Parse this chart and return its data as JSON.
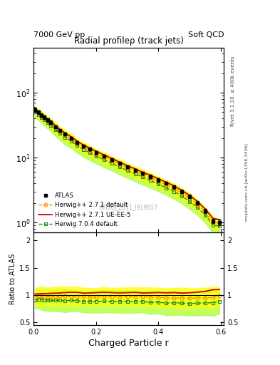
{
  "title_left": "7000 GeV pp",
  "title_right": "Soft QCD",
  "plot_title": "Radial profileρ (track jets)",
  "ylabel_ratio": "Ratio to ATLAS",
  "xlabel": "Charged Particle r",
  "right_label_top": "Rivet 3.1.10, ≥ 400k events",
  "right_label_bot": "mcplots.cern.ch [arXiv:1306.3436]",
  "watermark": "ATLAS_2011_I919017",
  "xlim": [
    0.0,
    0.61
  ],
  "ylim_main": [
    0.7,
    500
  ],
  "ylim_ratio": [
    0.45,
    2.15
  ],
  "r_values": [
    0.005,
    0.015,
    0.025,
    0.035,
    0.045,
    0.055,
    0.07,
    0.085,
    0.1,
    0.12,
    0.14,
    0.16,
    0.18,
    0.2,
    0.225,
    0.25,
    0.275,
    0.3,
    0.325,
    0.35,
    0.375,
    0.4,
    0.425,
    0.45,
    0.475,
    0.5,
    0.525,
    0.55,
    0.575,
    0.595
  ],
  "atlas_y": [
    55,
    50,
    45,
    42,
    38,
    35,
    30,
    26,
    23,
    20,
    17,
    15,
    13.5,
    12,
    10.5,
    9.3,
    8.2,
    7.2,
    6.4,
    5.7,
    5.1,
    4.5,
    4.0,
    3.5,
    3.0,
    2.5,
    2.0,
    1.5,
    1.05,
    1.0
  ],
  "atlas_yerr": [
    4,
    3.5,
    3,
    2.5,
    2.2,
    2.0,
    1.5,
    1.3,
    1.2,
    1.0,
    0.9,
    0.8,
    0.7,
    0.6,
    0.55,
    0.5,
    0.45,
    0.4,
    0.35,
    0.3,
    0.28,
    0.25,
    0.22,
    0.2,
    0.18,
    0.15,
    0.13,
    0.1,
    0.08,
    0.09
  ],
  "hw271d_y": [
    53,
    49,
    44,
    41,
    37,
    34,
    29,
    25.5,
    22.5,
    19.5,
    16.5,
    14.5,
    13,
    11.5,
    10.2,
    9.0,
    7.9,
    7.0,
    6.2,
    5.5,
    4.9,
    4.3,
    3.8,
    3.3,
    2.85,
    2.35,
    1.9,
    1.42,
    1.0,
    0.98
  ],
  "hw271ue_y": [
    56,
    51,
    46,
    43,
    39,
    36,
    31,
    27,
    24,
    21,
    17.8,
    15.5,
    14,
    12.5,
    11.0,
    9.7,
    8.5,
    7.5,
    6.7,
    5.9,
    5.3,
    4.7,
    4.15,
    3.65,
    3.1,
    2.6,
    2.1,
    1.6,
    1.15,
    1.1
  ],
  "hw704d_y": [
    50,
    46,
    41,
    38,
    34.5,
    31.5,
    27,
    23.5,
    20.5,
    18,
    15.2,
    13.2,
    11.8,
    10.5,
    9.3,
    8.2,
    7.2,
    6.3,
    5.6,
    5.0,
    4.4,
    3.9,
    3.4,
    3.0,
    2.55,
    2.1,
    1.7,
    1.28,
    0.9,
    0.88
  ],
  "hw704d_band_hi": [
    60,
    55,
    50,
    46,
    42,
    38,
    33,
    29,
    25.5,
    22,
    18.5,
    16.2,
    14.5,
    13,
    11.5,
    10.1,
    8.9,
    7.8,
    6.9,
    6.1,
    5.5,
    4.85,
    4.3,
    3.8,
    3.2,
    2.65,
    2.15,
    1.62,
    1.15,
    1.1
  ],
  "hw704d_band_lo": [
    42,
    38,
    34,
    31,
    28,
    25.5,
    21.5,
    18.5,
    16,
    14,
    11.8,
    10.2,
    9.1,
    8.1,
    7.1,
    6.3,
    5.5,
    4.85,
    4.3,
    3.8,
    3.4,
    3.0,
    2.65,
    2.3,
    1.95,
    1.6,
    1.3,
    0.98,
    0.69,
    0.68
  ],
  "hw271d_band_hi": [
    62,
    57,
    52,
    48,
    43,
    40,
    34.5,
    30,
    26.5,
    23,
    19.5,
    17,
    15.2,
    13.5,
    12,
    10.5,
    9.3,
    8.2,
    7.3,
    6.5,
    5.8,
    5.1,
    4.5,
    3.95,
    3.4,
    2.8,
    2.25,
    1.7,
    1.2,
    1.15
  ],
  "hw271d_band_lo": [
    44,
    41,
    37,
    34,
    31,
    28.5,
    24,
    21,
    18.5,
    16.2,
    13.7,
    11.8,
    10.6,
    9.4,
    8.3,
    7.3,
    6.4,
    5.65,
    5.0,
    4.45,
    3.95,
    3.5,
    3.1,
    2.7,
    2.3,
    1.9,
    1.55,
    1.15,
    0.82,
    0.82
  ],
  "color_atlas": "#000000",
  "color_hw271d": "#ff8c00",
  "color_hw271ue": "#cc0000",
  "color_hw704d": "#228b22",
  "band_color_hw704d": "#adff2f",
  "band_color_hw271d": "#ffff00",
  "ratio_hw271d": [
    0.96,
    0.98,
    0.978,
    0.976,
    0.974,
    0.971,
    0.967,
    0.981,
    0.978,
    0.975,
    0.971,
    0.967,
    0.963,
    0.958,
    0.971,
    0.968,
    0.963,
    0.972,
    0.969,
    0.965,
    0.961,
    0.956,
    0.95,
    0.943,
    0.95,
    0.94,
    0.95,
    0.947,
    0.952,
    0.98
  ],
  "ratio_hw271ue": [
    1.018,
    1.02,
    1.022,
    1.024,
    1.026,
    1.029,
    1.033,
    1.038,
    1.043,
    1.05,
    1.047,
    1.033,
    1.037,
    1.042,
    1.048,
    1.043,
    1.037,
    1.042,
    1.047,
    1.035,
    1.039,
    1.044,
    1.038,
    1.043,
    1.033,
    1.04,
    1.05,
    1.067,
    1.095,
    1.1
  ],
  "ratio_hw704d": [
    0.91,
    0.92,
    0.912,
    0.905,
    0.908,
    0.9,
    0.9,
    0.904,
    0.891,
    0.9,
    0.894,
    0.88,
    0.874,
    0.875,
    0.886,
    0.882,
    0.878,
    0.875,
    0.875,
    0.877,
    0.863,
    0.867,
    0.85,
    0.857,
    0.85,
    0.84,
    0.85,
    0.853,
    0.857,
    0.88
  ],
  "ratio_hw704d_hi": [
    1.09,
    1.1,
    1.11,
    1.1,
    1.105,
    1.086,
    1.1,
    1.115,
    1.109,
    1.1,
    1.088,
    1.08,
    1.074,
    1.083,
    1.095,
    1.087,
    1.085,
    1.083,
    1.078,
    1.072,
    1.078,
    1.072,
    1.075,
    1.086,
    1.067,
    1.06,
    1.075,
    1.08,
    1.095,
    1.1
  ],
  "ratio_hw704d_lo": [
    0.76,
    0.75,
    0.73,
    0.71,
    0.71,
    0.7,
    0.7,
    0.7,
    0.68,
    0.7,
    0.7,
    0.68,
    0.675,
    0.675,
    0.68,
    0.68,
    0.672,
    0.668,
    0.672,
    0.682,
    0.648,
    0.662,
    0.625,
    0.629,
    0.633,
    0.62,
    0.625,
    0.626,
    0.619,
    0.66
  ],
  "ratio_hw271d_hi": [
    1.13,
    1.14,
    1.156,
    1.143,
    1.132,
    1.143,
    1.15,
    1.154,
    1.152,
    1.15,
    1.147,
    1.133,
    1.127,
    1.125,
    1.143,
    1.129,
    1.134,
    1.139,
    1.141,
    1.14,
    1.137,
    1.133,
    1.125,
    1.129,
    1.133,
    1.12,
    1.125,
    1.133,
    1.143,
    1.15
  ],
  "ratio_hw271d_lo": [
    0.8,
    0.82,
    0.8,
    0.808,
    0.816,
    0.8,
    0.784,
    0.808,
    0.805,
    0.8,
    0.795,
    0.8,
    0.799,
    0.791,
    0.8,
    0.807,
    0.793,
    0.805,
    0.797,
    0.79,
    0.785,
    0.779,
    0.775,
    0.757,
    0.767,
    0.76,
    0.775,
    0.761,
    0.761,
    0.81
  ]
}
